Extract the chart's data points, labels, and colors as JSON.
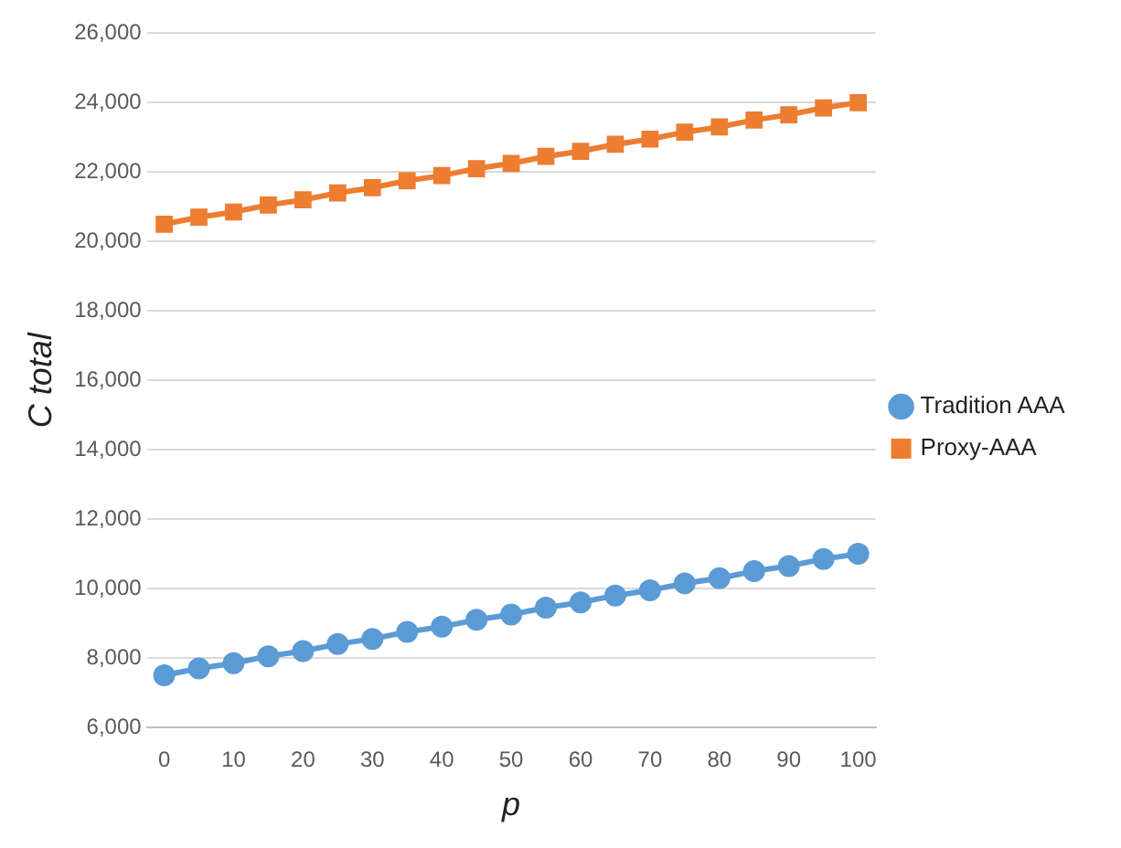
{
  "chart_data": {
    "type": "line",
    "xlabel": "p",
    "ylabel": "C total",
    "x": [
      0,
      5,
      10,
      15,
      20,
      25,
      30,
      35,
      40,
      45,
      50,
      55,
      60,
      65,
      70,
      75,
      80,
      85,
      90,
      95,
      100
    ],
    "xlim": [
      -2.5,
      102.5
    ],
    "xticks": [
      0,
      10,
      20,
      30,
      40,
      50,
      60,
      70,
      80,
      90,
      100
    ],
    "ylim": [
      6000,
      26000
    ],
    "yticks": [
      {
        "value": 6000,
        "label": "6,000"
      },
      {
        "value": 8000,
        "label": "8,000"
      },
      {
        "value": 10000,
        "label": "10,000"
      },
      {
        "value": 12000,
        "label": "12,000"
      },
      {
        "value": 14000,
        "label": "14,000"
      },
      {
        "value": 16000,
        "label": "16,000"
      },
      {
        "value": 18000,
        "label": "18,000"
      },
      {
        "value": 20000,
        "label": "20,000"
      },
      {
        "value": 22000,
        "label": "22,000"
      },
      {
        "value": 24000,
        "label": "24,000"
      },
      {
        "value": 26000,
        "label": "26,000"
      }
    ],
    "grid": "y",
    "legend": "right",
    "series": [
      {
        "name": "Tradition AAA",
        "color": "#5b9bd5",
        "marker": "circle",
        "values": [
          7500,
          7700,
          7850,
          8050,
          8200,
          8400,
          8550,
          8750,
          8900,
          9100,
          9250,
          9450,
          9600,
          9800,
          9950,
          10150,
          10300,
          10500,
          10650,
          10850,
          11000
        ]
      },
      {
        "name": "Proxy-AAA",
        "color": "#ed7d31",
        "marker": "square",
        "values": [
          20500,
          20700,
          20850,
          21050,
          21200,
          21400,
          21550,
          21750,
          21900,
          22100,
          22250,
          22450,
          22600,
          22800,
          22950,
          23150,
          23300,
          23500,
          23650,
          23850,
          24000
        ]
      }
    ]
  }
}
